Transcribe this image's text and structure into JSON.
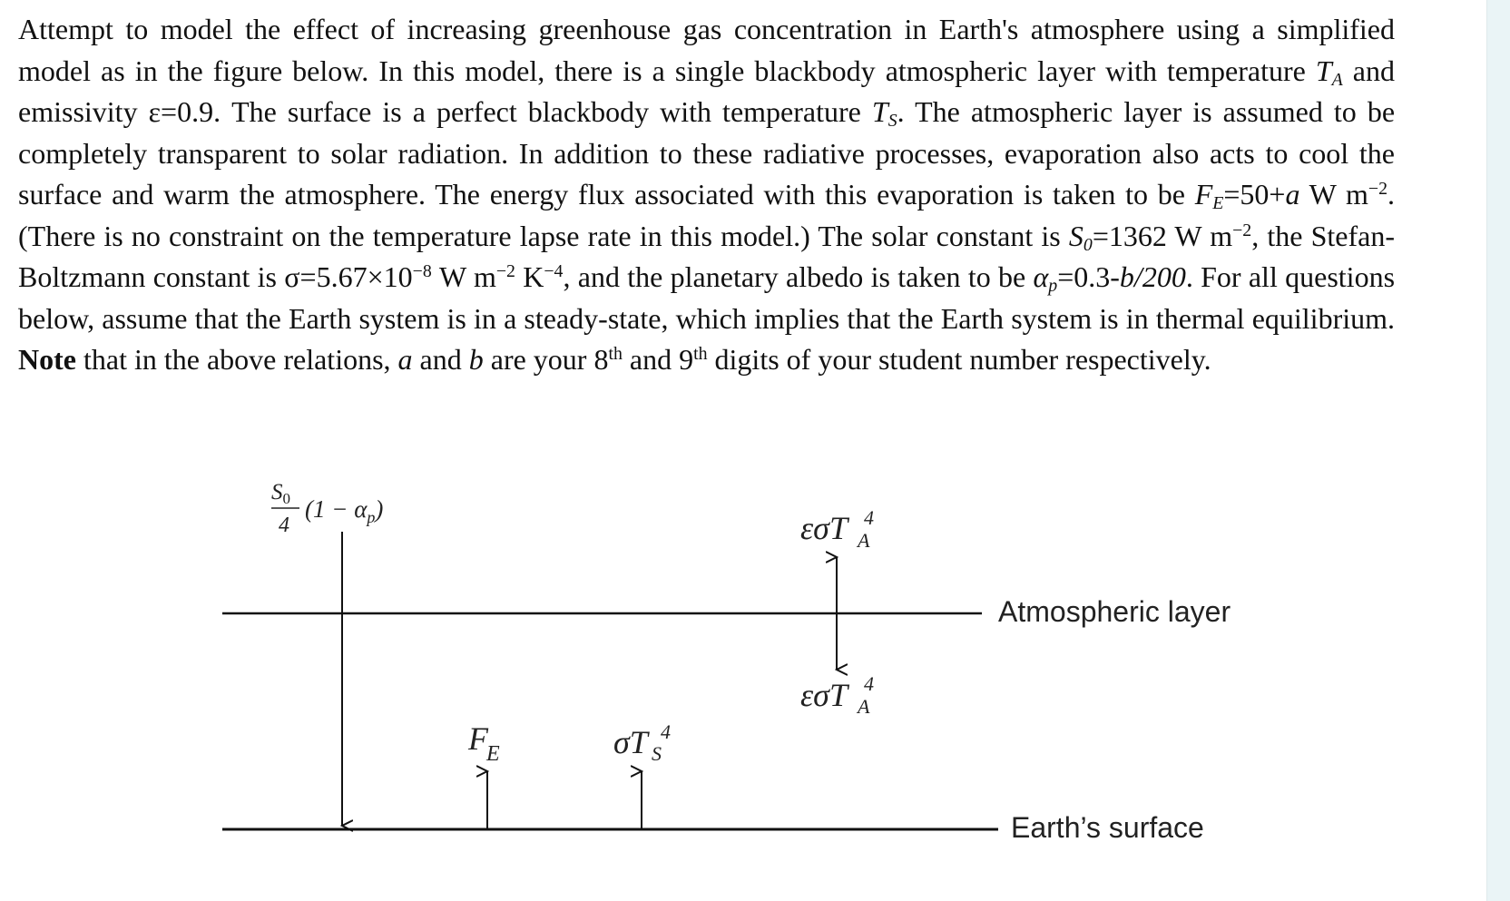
{
  "text": {
    "intro": "Attempt to model the effect of increasing greenhouse gas concentration in Earth's atmosphere using a simplified model as in the figure below. In this model, there is a single blackbody atmospheric layer with temperature ",
    "T": "T",
    "A": "A",
    "S": "S",
    "emiss_pre": " and emissivity ",
    "eps_val": "ε=0.9",
    "surface_pre": ". The surface is a perfect blackbody with temperature ",
    "s2": ". The atmospheric layer is assumed to be completely transparent to solar radiation. In addition to these radiative processes, evaporation also acts to cool the surface and warm the atmosphere. The energy flux associated with this evaporation is taken to be ",
    "F": "F",
    "E": "E",
    "fe_val": "=50+",
    "a": "a",
    "unit_wm": " W m",
    "exp_m2": "−2",
    "s3": ". (There is no constraint on the temperature lapse rate in this model.) The solar constant is ",
    "S0": "S",
    "zero": "0",
    "s0_val": "=1362",
    "s4": ", the Stefan-Boltzmann constant is ",
    "sigma_val": "σ=5.67×10",
    "exp_m8": "−8",
    "K": " K",
    "exp_m4": "−4",
    "s5": ", and the planetary albedo is taken to be ",
    "alpha": "α",
    "p": "p",
    "albedo_val": "=0.3-",
    "b_over": "b/200",
    "s6": ". For all questions below, assume that the Earth system is in a steady-state, which implies that the Earth system is in thermal equilibrium. ",
    "note": "Note",
    "s7": " that in the above relations, ",
    "and1": " and ",
    "b": "b",
    "s8": " are your 8",
    "th": "th",
    "and2": " and 9",
    "s9": " digits of your student number respectively."
  },
  "diagram": {
    "solar_num": "S",
    "solar_num_sub": "0",
    "solar_den": "4",
    "solar_rest": "(1 − α",
    "solar_rest_sub": "p",
    "solar_close": ")",
    "eps_sigma": "εσT",
    "sub_A": "A",
    "sup_4": "4",
    "sigma": "σT",
    "sub_S": "S",
    "FE_F": "F",
    "FE_E": "E",
    "atmos_label": "Atmospheric layer",
    "surface_label": "Earth’s surface"
  },
  "colors": {
    "ink": "#111111",
    "panel": "#eaf4f6"
  }
}
